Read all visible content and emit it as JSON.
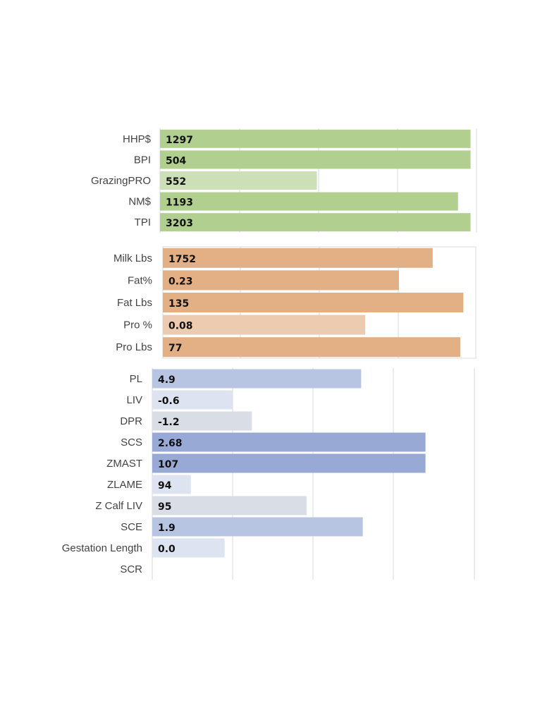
{
  "chart_data": [
    {
      "type": "bar",
      "orientation": "horizontal",
      "title": "",
      "xlabel": "",
      "ylabel": "",
      "xlim": [
        0,
        2000
      ],
      "grid": true,
      "categories": [
        "HHP$",
        "BPI",
        "GrazingPRO",
        "NM$",
        "TPI"
      ],
      "values": [
        1297,
        504,
        552,
        1193,
        3203
      ],
      "value_labels": [
        "1297",
        "504",
        "552",
        "1193",
        "3203"
      ],
      "bar_fill_fraction": [
        0.99,
        0.99,
        0.5,
        0.95,
        0.99
      ],
      "colors": [
        "#b1cf8f",
        "#b1cf8f",
        "#cddfb7",
        "#b1cf8f",
        "#b1cf8f"
      ]
    },
    {
      "type": "bar",
      "orientation": "horizontal",
      "title": "",
      "xlabel": "",
      "ylabel": "",
      "xlim": [
        0,
        2000
      ],
      "grid": true,
      "categories": [
        "Milk Lbs",
        "Fat%",
        "Fat Lbs",
        "Pro %",
        "Pro Lbs"
      ],
      "values": [
        1752,
        0.23,
        135,
        0.08,
        77
      ],
      "value_labels": [
        "1752",
        "0.23",
        "135",
        "0.08",
        "77"
      ],
      "bar_fill_fraction": [
        0.88,
        0.77,
        0.98,
        0.66,
        0.97
      ],
      "colors": [
        "#e3af84",
        "#e3af84",
        "#e3af84",
        "#edcbb0",
        "#e3af84"
      ]
    },
    {
      "type": "bar",
      "orientation": "horizontal",
      "title": "",
      "xlabel": "",
      "ylabel": "",
      "xlim": [
        0,
        4
      ],
      "grid": true,
      "categories": [
        "PL",
        "LIV",
        "DPR",
        "SCS",
        "ZMAST",
        "ZLAME",
        "Z Calf LIV",
        "SCE",
        "Gestation Length",
        "SCR"
      ],
      "values": [
        4.9,
        -0.6,
        -1.2,
        2.68,
        107,
        94,
        95,
        1.9,
        0.0,
        null
      ],
      "value_labels": [
        "4.9",
        "-0.6",
        "-1.2",
        "2.68",
        "107",
        "94",
        "95",
        "1.9",
        "0.0",
        ""
      ],
      "bar_fill_fraction": [
        0.65,
        0.25,
        0.31,
        0.85,
        0.85,
        0.12,
        0.48,
        0.655,
        0.225,
        0
      ],
      "colors": [
        "#b7c5e3",
        "#dde3f1",
        "#d9dde6",
        "#97a9d4",
        "#97a9d4",
        "#dde3f1",
        "#d9dde6",
        "#b7c5e3",
        "#dde3f1",
        "#ffffff"
      ]
    }
  ]
}
